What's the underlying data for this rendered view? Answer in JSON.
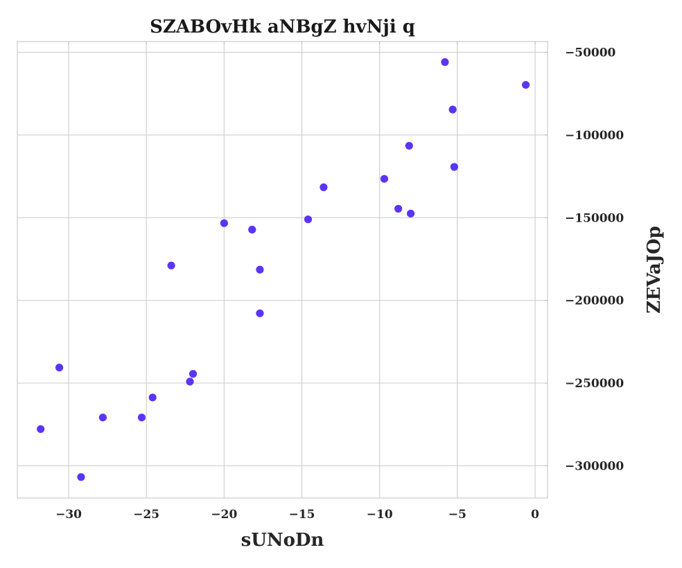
{
  "chart_data": {
    "type": "scatter",
    "title": "SZABOvHk aNBgZ  hvNji q",
    "xlabel": "sUNoDn",
    "ylabel": "ZEVaJOp",
    "xlim": [
      -33.3,
      0.8
    ],
    "ylim": [
      -319500,
      -43500
    ],
    "xticks": [
      -30,
      -25,
      -20,
      -15,
      -10,
      -5,
      0
    ],
    "xtick_labels": [
      "−30",
      "−25",
      "−20",
      "−15",
      "−10",
      "−5",
      "0"
    ],
    "yticks": [
      -50000,
      -100000,
      -150000,
      -200000,
      -250000,
      -300000
    ],
    "ytick_labels": [
      "−50000",
      "−100000",
      "−150000",
      "−200000",
      "−250000",
      "−300000"
    ],
    "y_axis_position": "right",
    "grid": true,
    "marker_color": "#5b35f5",
    "points": [
      {
        "x": -5.8,
        "y": -55900
      },
      {
        "x": -0.6,
        "y": -69700
      },
      {
        "x": -5.3,
        "y": -84600
      },
      {
        "x": -8.1,
        "y": -106500
      },
      {
        "x": -5.2,
        "y": -119300
      },
      {
        "x": -9.7,
        "y": -126500
      },
      {
        "x": -13.6,
        "y": -131600
      },
      {
        "x": -8.8,
        "y": -144600
      },
      {
        "x": -8.0,
        "y": -147500
      },
      {
        "x": -14.6,
        "y": -151000
      },
      {
        "x": -20.0,
        "y": -153300
      },
      {
        "x": -18.2,
        "y": -157200
      },
      {
        "x": -23.4,
        "y": -178900
      },
      {
        "x": -17.7,
        "y": -181400
      },
      {
        "x": -17.7,
        "y": -207800
      },
      {
        "x": -30.6,
        "y": -240600
      },
      {
        "x": -22.0,
        "y": -244400
      },
      {
        "x": -22.2,
        "y": -249100
      },
      {
        "x": -24.6,
        "y": -258700
      },
      {
        "x": -27.8,
        "y": -270800
      },
      {
        "x": -25.3,
        "y": -270800
      },
      {
        "x": -31.8,
        "y": -277800
      },
      {
        "x": -29.2,
        "y": -306800
      }
    ]
  }
}
